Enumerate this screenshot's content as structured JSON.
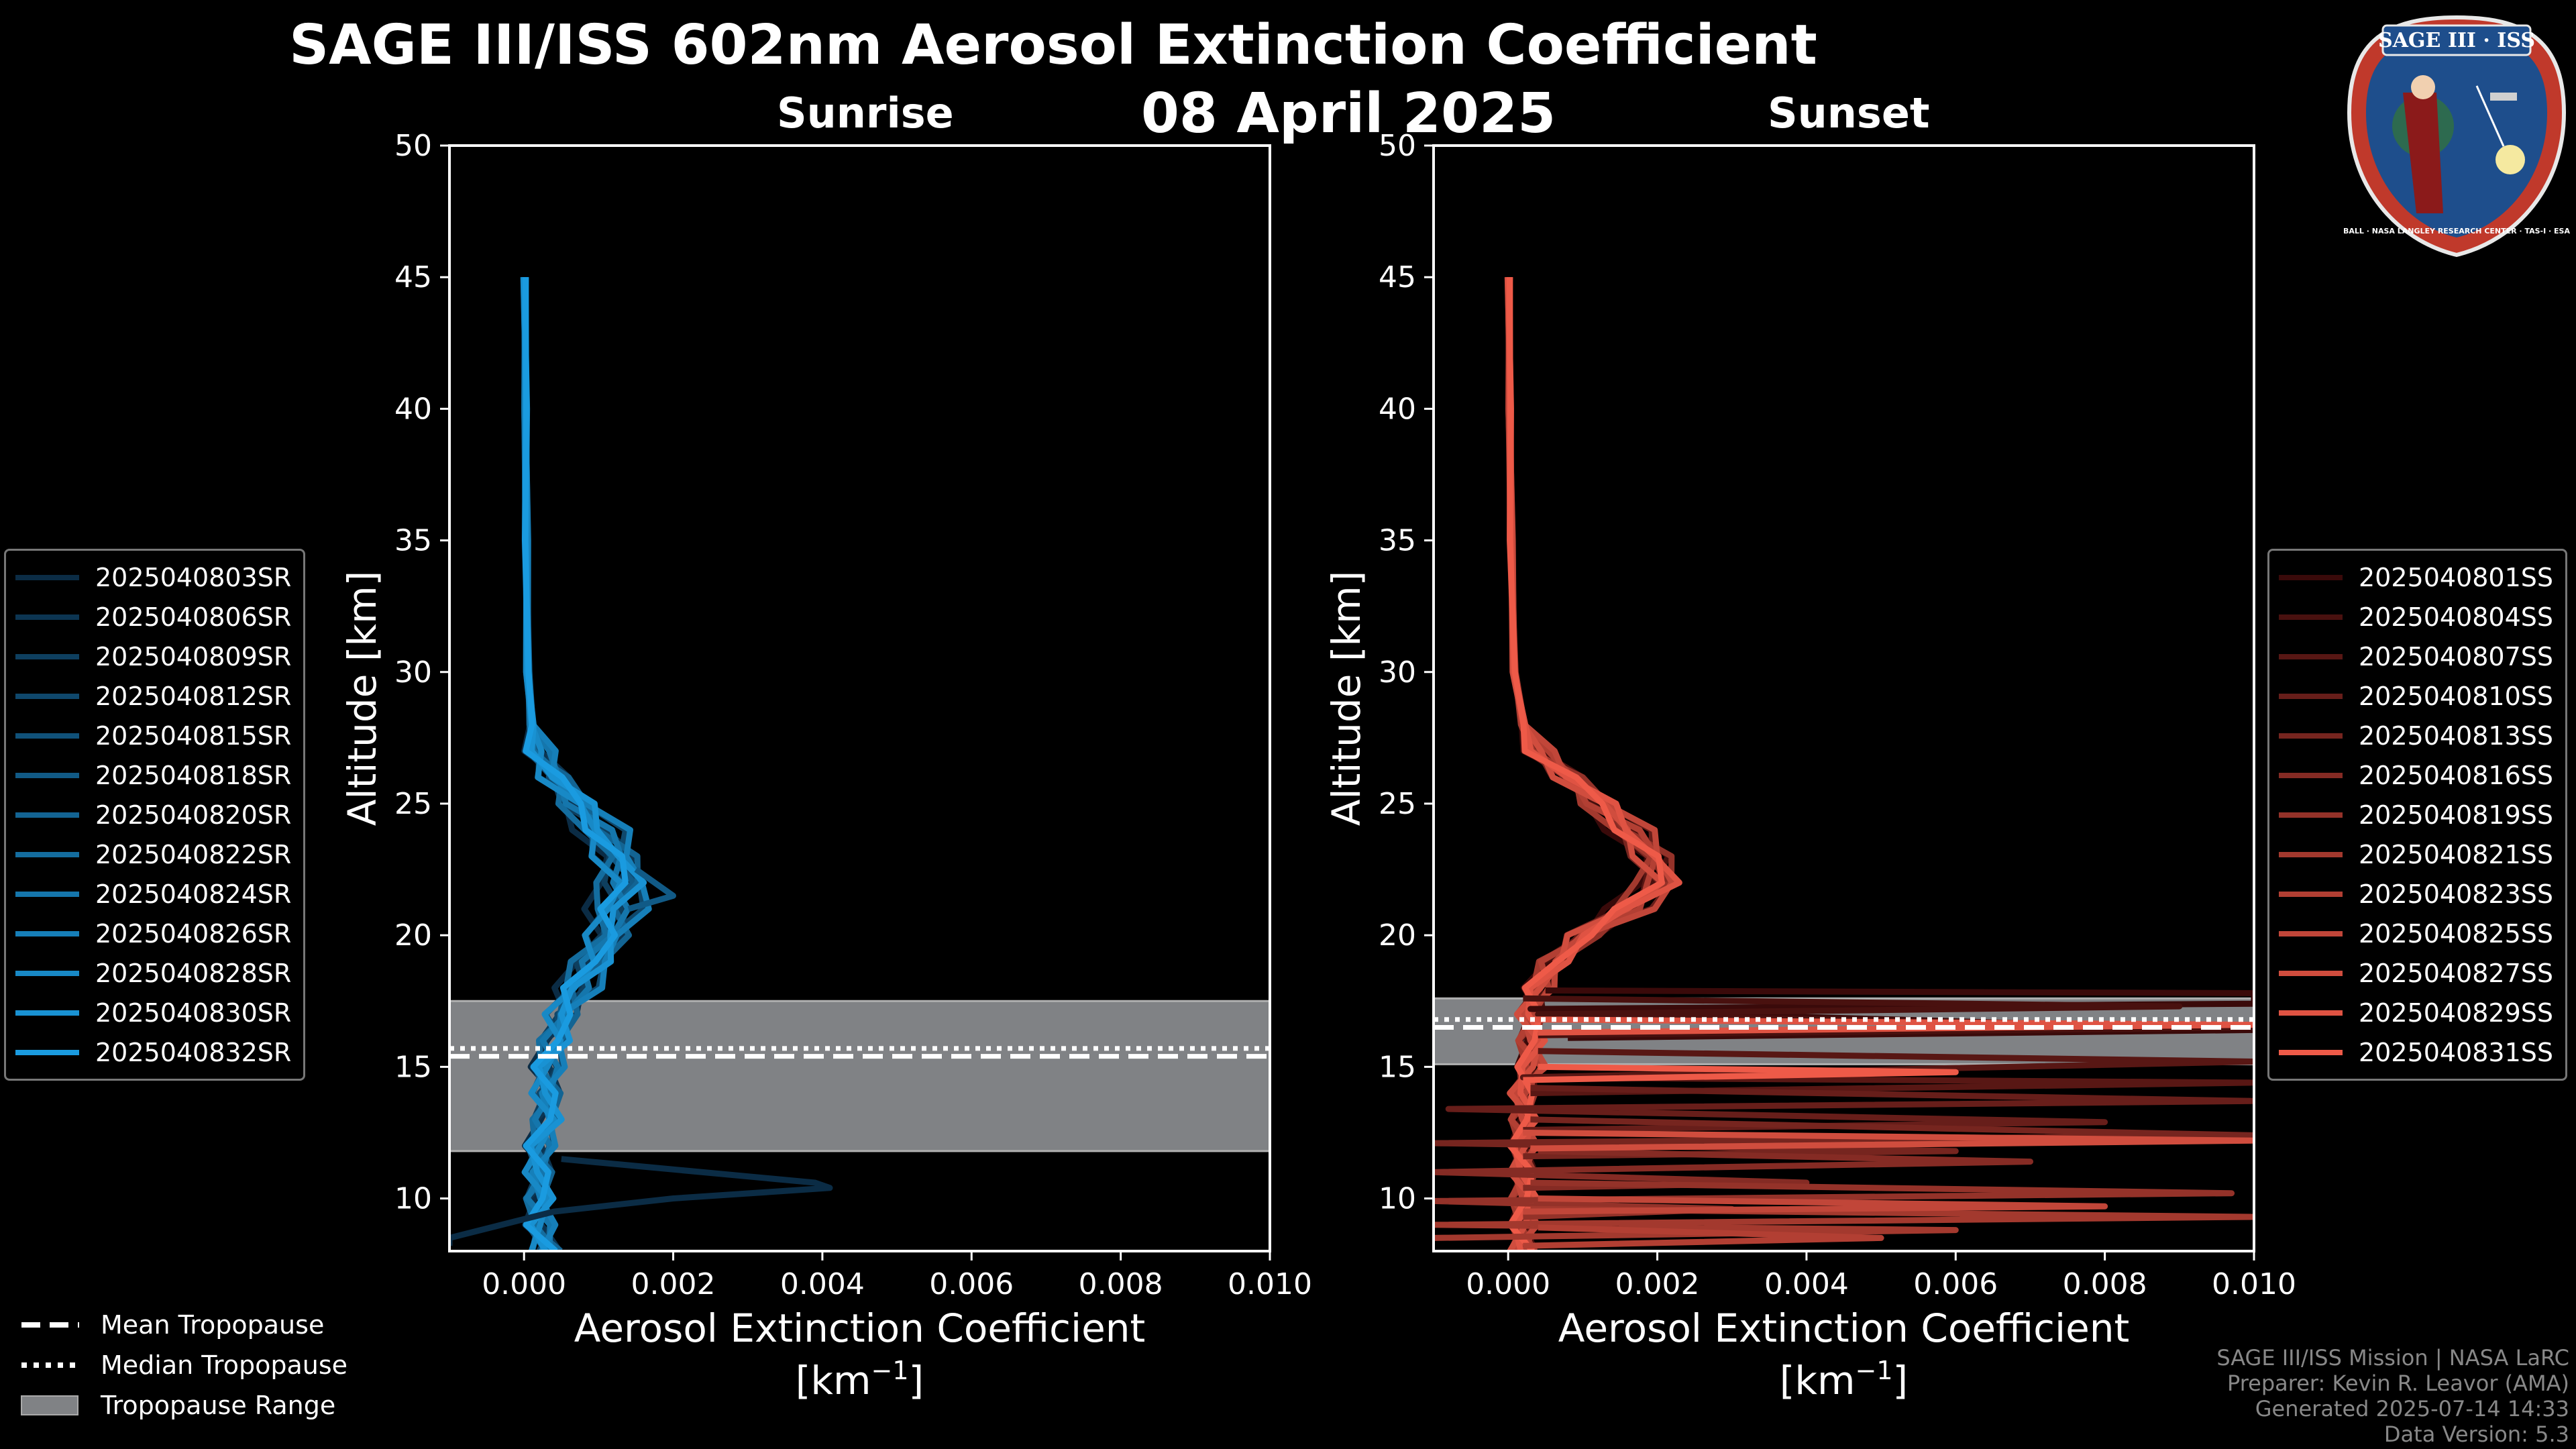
{
  "title": "SAGE III/ISS 602nm Aerosol Extinction Coefficient",
  "date": "08 April 2025",
  "panels": {
    "sunrise": {
      "subtitle": "Sunrise"
    },
    "sunset": {
      "subtitle": "Sunset"
    }
  },
  "axes": {
    "ylabel": "Altitude [km]",
    "xlabel_line1": "Aerosol Extinction Coefficient",
    "xlabel_line2": "[km",
    "xlabel_sup": "−1",
    "xlabel_end": "]"
  },
  "colors": {
    "sunrise_dark": "#0b2c45",
    "sunrise_light": "#1a9be0",
    "sunset_dark": "#3a0a0a",
    "sunset_light": "#ee5a48",
    "tropopause_fill": "#808285"
  },
  "legend_sunrise": [
    "2025040803SR",
    "2025040806SR",
    "2025040809SR",
    "2025040812SR",
    "2025040815SR",
    "2025040818SR",
    "2025040820SR",
    "2025040822SR",
    "2025040824SR",
    "2025040826SR",
    "2025040828SR",
    "2025040830SR",
    "2025040832SR"
  ],
  "legend_sunset": [
    "2025040801SS",
    "2025040804SS",
    "2025040807SS",
    "2025040810SS",
    "2025040813SS",
    "2025040816SS",
    "2025040819SS",
    "2025040821SS",
    "2025040823SS",
    "2025040825SS",
    "2025040827SS",
    "2025040829SS",
    "2025040831SS"
  ],
  "tropopause_legend": {
    "mean": "Mean Tropopause",
    "median": "Median Tropopause",
    "range": "Tropopause Range"
  },
  "footer": {
    "line1": "SAGE III/ISS Mission | NASA LaRC",
    "line2": "Preparer: Kevin R. Leavor (AMA)",
    "line3": "Generated 2025-07-14 14:33",
    "line4": "Data Version: 5.3"
  },
  "logo": {
    "title": "SAGE III · ISS",
    "ring_text": "BALL · NASA LANGLEY RESEARCH CENTER · TAS-I · ESA"
  },
  "chart_data": [
    {
      "type": "line",
      "name": "Sunrise",
      "xlim": [
        -0.001,
        0.01
      ],
      "ylim": [
        8,
        50
      ],
      "xticks": [
        0.0,
        0.002,
        0.004,
        0.006,
        0.008,
        0.01
      ],
      "xtick_labels": [
        "0.000",
        "0.002",
        "0.004",
        "0.006",
        "0.008",
        "0.010"
      ],
      "yticks": [
        10,
        15,
        20,
        25,
        30,
        35,
        40,
        45,
        50
      ],
      "ytick_labels": [
        "10",
        "15",
        "20",
        "25",
        "30",
        "35",
        "40",
        "45",
        "50"
      ],
      "tropopause": {
        "min": 11.8,
        "max": 17.5,
        "mean": 15.4,
        "median": 15.7
      },
      "base_profile": [
        [
          45,
          1e-05
        ],
        [
          40,
          2e-05
        ],
        [
          35,
          3e-05
        ],
        [
          30,
          5e-05
        ],
        [
          28,
          0.0001
        ],
        [
          27,
          0.0002
        ],
        [
          26,
          0.0004
        ],
        [
          25,
          0.0007
        ],
        [
          24,
          0.001
        ],
        [
          23,
          0.0012
        ],
        [
          22,
          0.0013
        ],
        [
          21,
          0.0012
        ],
        [
          20,
          0.0011
        ],
        [
          19,
          0.0009
        ],
        [
          18,
          0.0007
        ],
        [
          17,
          0.0005
        ],
        [
          16,
          0.0004
        ],
        [
          15,
          0.0003
        ],
        [
          14,
          0.0003
        ],
        [
          13,
          0.0003
        ],
        [
          12,
          0.0002
        ],
        [
          11,
          0.0002
        ],
        [
          10,
          0.0002
        ],
        [
          9,
          0.0002
        ],
        [
          8,
          0.0003
        ]
      ],
      "series_scale": [
        0.8,
        1.1,
        0.95,
        1.2,
        0.9,
        1.0,
        1.15,
        0.85,
        1.05,
        1.25,
        0.9,
        1.1,
        1.0
      ],
      "spikes": [
        {
          "series": 0,
          "points": [
            [
              11.5,
              0.0005
            ],
            [
              10.6,
              0.0039
            ],
            [
              10.4,
              0.0041
            ],
            [
              10.0,
              0.002
            ],
            [
              9.5,
              0.0004
            ],
            [
              8.5,
              -0.001
            ],
            [
              8.2,
              -0.001
            ]
          ]
        },
        {
          "series": 5,
          "points": [
            [
              22.5,
              0.0015
            ],
            [
              21.5,
              0.002
            ],
            [
              21.0,
              0.0014
            ]
          ]
        }
      ]
    },
    {
      "type": "line",
      "name": "Sunset",
      "xlim": [
        -0.001,
        0.01
      ],
      "ylim": [
        8,
        50
      ],
      "xticks": [
        0.0,
        0.002,
        0.004,
        0.006,
        0.008,
        0.01
      ],
      "xtick_labels": [
        "0.000",
        "0.002",
        "0.004",
        "0.006",
        "0.008",
        "0.010"
      ],
      "yticks": [
        10,
        15,
        20,
        25,
        30,
        35,
        40,
        45,
        50
      ],
      "ytick_labels": [
        "10",
        "15",
        "20",
        "25",
        "30",
        "35",
        "40",
        "45",
        "50"
      ],
      "tropopause": {
        "min": 15.1,
        "max": 17.6,
        "mean": 16.5,
        "median": 16.8
      },
      "base_profile": [
        [
          45,
          1e-05
        ],
        [
          40,
          2e-05
        ],
        [
          35,
          4e-05
        ],
        [
          30,
          8e-05
        ],
        [
          28,
          0.0002
        ],
        [
          27,
          0.0004
        ],
        [
          26,
          0.0008
        ],
        [
          25,
          0.0012
        ],
        [
          24,
          0.0016
        ],
        [
          23,
          0.0019
        ],
        [
          22,
          0.002
        ],
        [
          21,
          0.0016
        ],
        [
          20,
          0.001
        ],
        [
          19,
          0.0006
        ],
        [
          18,
          0.0004
        ],
        [
          17,
          0.0003
        ],
        [
          16,
          0.0003
        ],
        [
          15,
          0.0003
        ],
        [
          14,
          0.0002
        ],
        [
          13,
          0.0002
        ],
        [
          12,
          0.0002
        ],
        [
          11,
          0.0002
        ],
        [
          10,
          0.0002
        ],
        [
          9,
          0.0002
        ],
        [
          8,
          0.0002
        ]
      ],
      "series_scale": [
        0.9,
        1.05,
        1.0,
        1.1,
        0.95,
        1.0,
        1.08,
        0.92,
        1.02,
        1.12,
        0.97,
        1.06,
        1.0
      ],
      "noise_series": [
        [
          [
            17.9,
            0.0005
          ],
          [
            17.8,
            0.01
          ],
          [
            17.4,
            0.01
          ],
          [
            17.2,
            0.0003
          ],
          [
            16.4,
            0.01
          ],
          [
            16.1,
            0.0008
          ]
        ],
        [
          [
            17.6,
            0.0002
          ],
          [
            17.3,
            0.009
          ],
          [
            17.0,
            0.0004
          ],
          [
            16.5,
            0.01
          ],
          [
            16.2,
            0.0004
          ]
        ],
        [
          [
            15.6,
            0.0004
          ],
          [
            15.2,
            0.01
          ],
          [
            14.6,
            0.0002
          ],
          [
            14.4,
            0.01
          ],
          [
            14.0,
            0.0003
          ]
        ],
        [
          [
            14.2,
            0.0003
          ],
          [
            13.7,
            0.01
          ],
          [
            13.4,
            -0.0008
          ],
          [
            12.9,
            0.008
          ],
          [
            12.6,
            0.0002
          ]
        ],
        [
          [
            13.0,
            0.0003
          ],
          [
            12.4,
            0.01
          ],
          [
            12.1,
            -0.001
          ],
          [
            11.8,
            0.006
          ],
          [
            11.6,
            0.0002
          ]
        ],
        [
          [
            11.8,
            0.0004
          ],
          [
            11.4,
            0.007
          ],
          [
            11.0,
            -0.001
          ],
          [
            10.6,
            0.004
          ],
          [
            10.4,
            0.0002
          ]
        ],
        [
          [
            10.6,
            0.0003
          ],
          [
            10.2,
            0.0097
          ],
          [
            9.9,
            -0.001
          ],
          [
            9.6,
            0.003
          ],
          [
            9.3,
            0.0002
          ]
        ],
        [
          [
            9.6,
            0.0003
          ],
          [
            9.3,
            0.01
          ],
          [
            9.0,
            -0.001
          ],
          [
            8.8,
            0.006
          ],
          [
            8.5,
            -0.001
          ]
        ],
        [
          [
            8.9,
            0.0004
          ],
          [
            8.5,
            0.005
          ],
          [
            8.2,
            0.0002
          ]
        ],
        [
          [
            10.0,
            0.0004
          ],
          [
            9.7,
            0.008
          ],
          [
            9.5,
            0.0002
          ]
        ],
        [
          [
            12.5,
            0.0002
          ],
          [
            12.2,
            0.01
          ],
          [
            11.9,
            0.0003
          ]
        ],
        [
          [
            16.8,
            0.0003
          ],
          [
            16.6,
            0.01
          ],
          [
            16.3,
            0.0004
          ]
        ],
        [
          [
            15.0,
            0.0004
          ],
          [
            14.8,
            0.006
          ],
          [
            14.5,
            0.0002
          ]
        ]
      ]
    }
  ]
}
